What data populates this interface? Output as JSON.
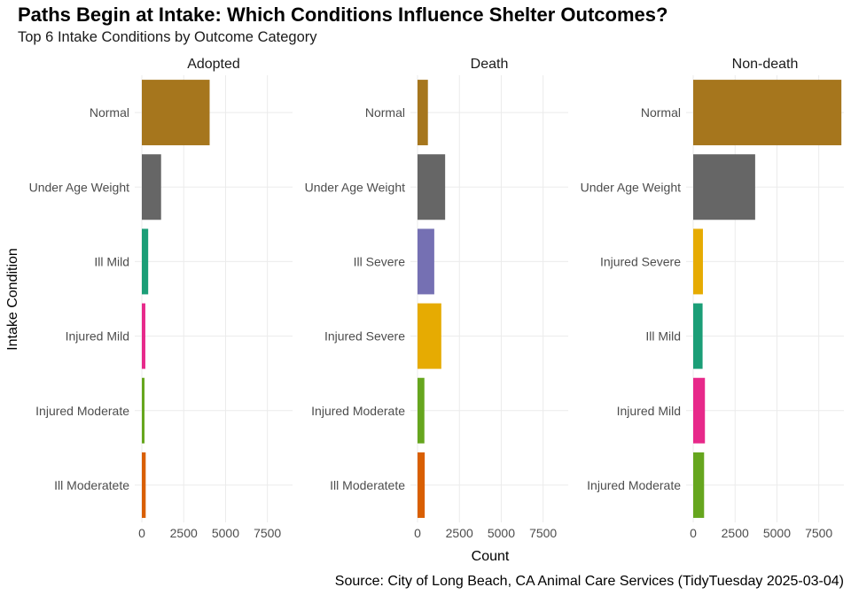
{
  "chart_data": {
    "type": "bar",
    "orientation": "horizontal",
    "title": "Paths Begin at Intake: Which Conditions Influence Shelter Outcomes?",
    "subtitle": "Top 6 Intake Conditions by Outcome Category",
    "xlabel": "Count",
    "ylabel": "Intake Condition",
    "caption": "Source: City of Long Beach, CA Animal Care Services (TidyTuesday 2025-03-04)",
    "xlim": [
      0,
      9000
    ],
    "xticks": [
      0,
      2500,
      5000,
      7500
    ],
    "grid": true,
    "legend": "none",
    "colors": {
      "Normal": "#A6761D",
      "Under Age Weight": "#666666",
      "Ill Mild": "#1B9E77",
      "Injured Mild": "#E7298A",
      "Injured Moderate": "#66A61E",
      "Ill Moderatete": "#D95F02",
      "Ill Severe": "#7570B3",
      "Injured Severe": "#E6AB02"
    },
    "facets": [
      {
        "name": "Adopted",
        "categories": [
          "Normal",
          "Under Age Weight",
          "Ill Mild",
          "Injured Mild",
          "Injured Moderate",
          "Ill Moderatete"
        ],
        "values": [
          4050,
          1150,
          380,
          210,
          160,
          230
        ]
      },
      {
        "name": "Death",
        "categories": [
          "Normal",
          "Under Age Weight",
          "Ill Severe",
          "Injured Severe",
          "Injured Moderate",
          "Ill Moderatete"
        ],
        "values": [
          620,
          1650,
          1000,
          1420,
          410,
          430
        ]
      },
      {
        "name": "Non-death",
        "categories": [
          "Normal",
          "Under Age Weight",
          "Injured Severe",
          "Ill Mild",
          "Injured Mild",
          "Injured Moderate"
        ],
        "values": [
          8850,
          3700,
          580,
          560,
          700,
          650
        ]
      }
    ]
  }
}
